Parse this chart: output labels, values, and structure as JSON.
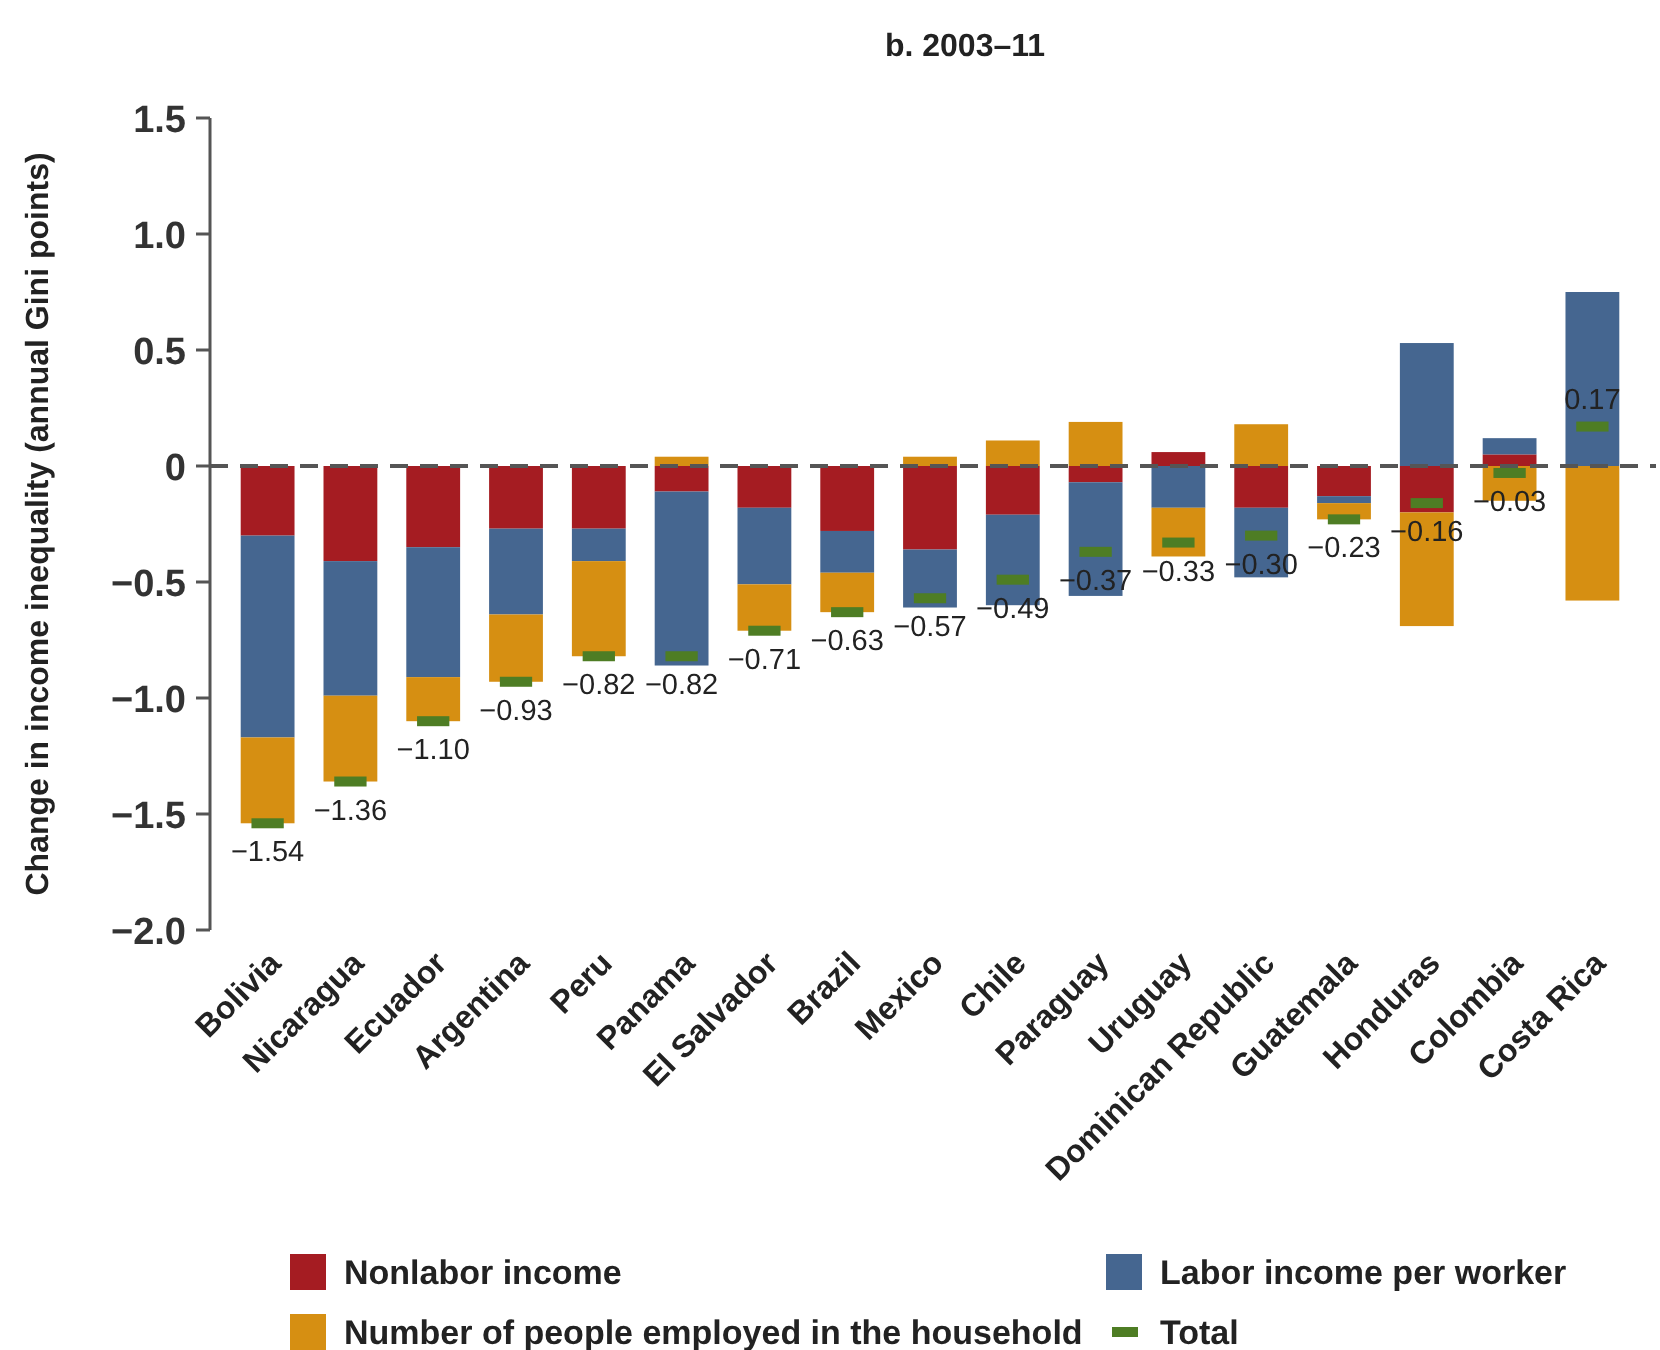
{
  "chart_data": {
    "type": "bar",
    "stacked": true,
    "title": "b. 2003–11",
    "ylabel": "Change in income inequality (annual Gini points)",
    "categories": [
      "Bolivia",
      "Nicaragua",
      "Ecuador",
      "Argentina",
      "Peru",
      "Panama",
      "El Salvador",
      "Brazil",
      "Mexico",
      "Chile",
      "Paraguay",
      "Uruguay",
      "Dominican Republic",
      "Guatemala",
      "Honduras",
      "Colombia",
      "Costa Rica"
    ],
    "series": [
      {
        "name": "Nonlabor income",
        "color": "#a51c22",
        "values": [
          -0.3,
          -0.41,
          -0.35,
          -0.27,
          -0.27,
          -0.11,
          -0.18,
          -0.28,
          -0.36,
          -0.21,
          -0.07,
          0.06,
          -0.18,
          -0.13,
          -0.2,
          0.05,
          0
        ]
      },
      {
        "name": "Labor income per worker",
        "color": "#456690",
        "values": [
          -0.87,
          -0.58,
          -0.56,
          -0.37,
          -0.14,
          -0.75,
          -0.33,
          -0.18,
          -0.25,
          -0.39,
          -0.49,
          -0.18,
          -0.3,
          -0.03,
          0.53,
          0.07,
          0.75
        ]
      },
      {
        "name": "Number of people employed in the household",
        "color": "#d68f12",
        "values": [
          -0.37,
          -0.37,
          -0.19,
          -0.29,
          -0.41,
          0.04,
          -0.2,
          -0.17,
          0.04,
          0.11,
          0.19,
          -0.21,
          0.18,
          -0.07,
          -0.49,
          -0.15,
          -0.58
        ]
      },
      {
        "name": "Total",
        "type": "scatter",
        "color": "#4e7d24",
        "values": [
          -1.54,
          -1.36,
          -1.1,
          -0.93,
          -0.82,
          -0.82,
          -0.71,
          -0.63,
          -0.57,
          -0.49,
          -0.37,
          -0.33,
          -0.3,
          -0.23,
          -0.16,
          -0.03,
          0.17
        ],
        "value_labels": [
          "−1.54",
          "−1.36",
          "−1.10",
          "−0.93",
          "−0.82",
          "−0.82",
          "−0.71",
          "−0.63",
          "−0.57",
          "−0.49",
          "−0.37",
          "−0.33",
          "−0.30",
          "−0.23",
          "−0.16",
          "−0.03",
          "0.17"
        ]
      }
    ],
    "ylim": [
      -2.0,
      1.5
    ],
    "yticks": [
      {
        "value": -2.0,
        "label": "−2.0"
      },
      {
        "value": -1.5,
        "label": "−1.5"
      },
      {
        "value": -1.0,
        "label": "−1.0"
      },
      {
        "value": -0.5,
        "label": "−0.5"
      },
      0,
      {
        "value": 0.5,
        "label": "0.5"
      },
      {
        "value": 1.0,
        "label": "1.0"
      },
      {
        "value": 1.5,
        "label": "1.5"
      }
    ],
    "ref_lines": [
      {
        "axis": "y",
        "value": 0,
        "line_style": "dashed",
        "color": "#555555"
      }
    ],
    "legend": "bottom",
    "grid": false
  }
}
